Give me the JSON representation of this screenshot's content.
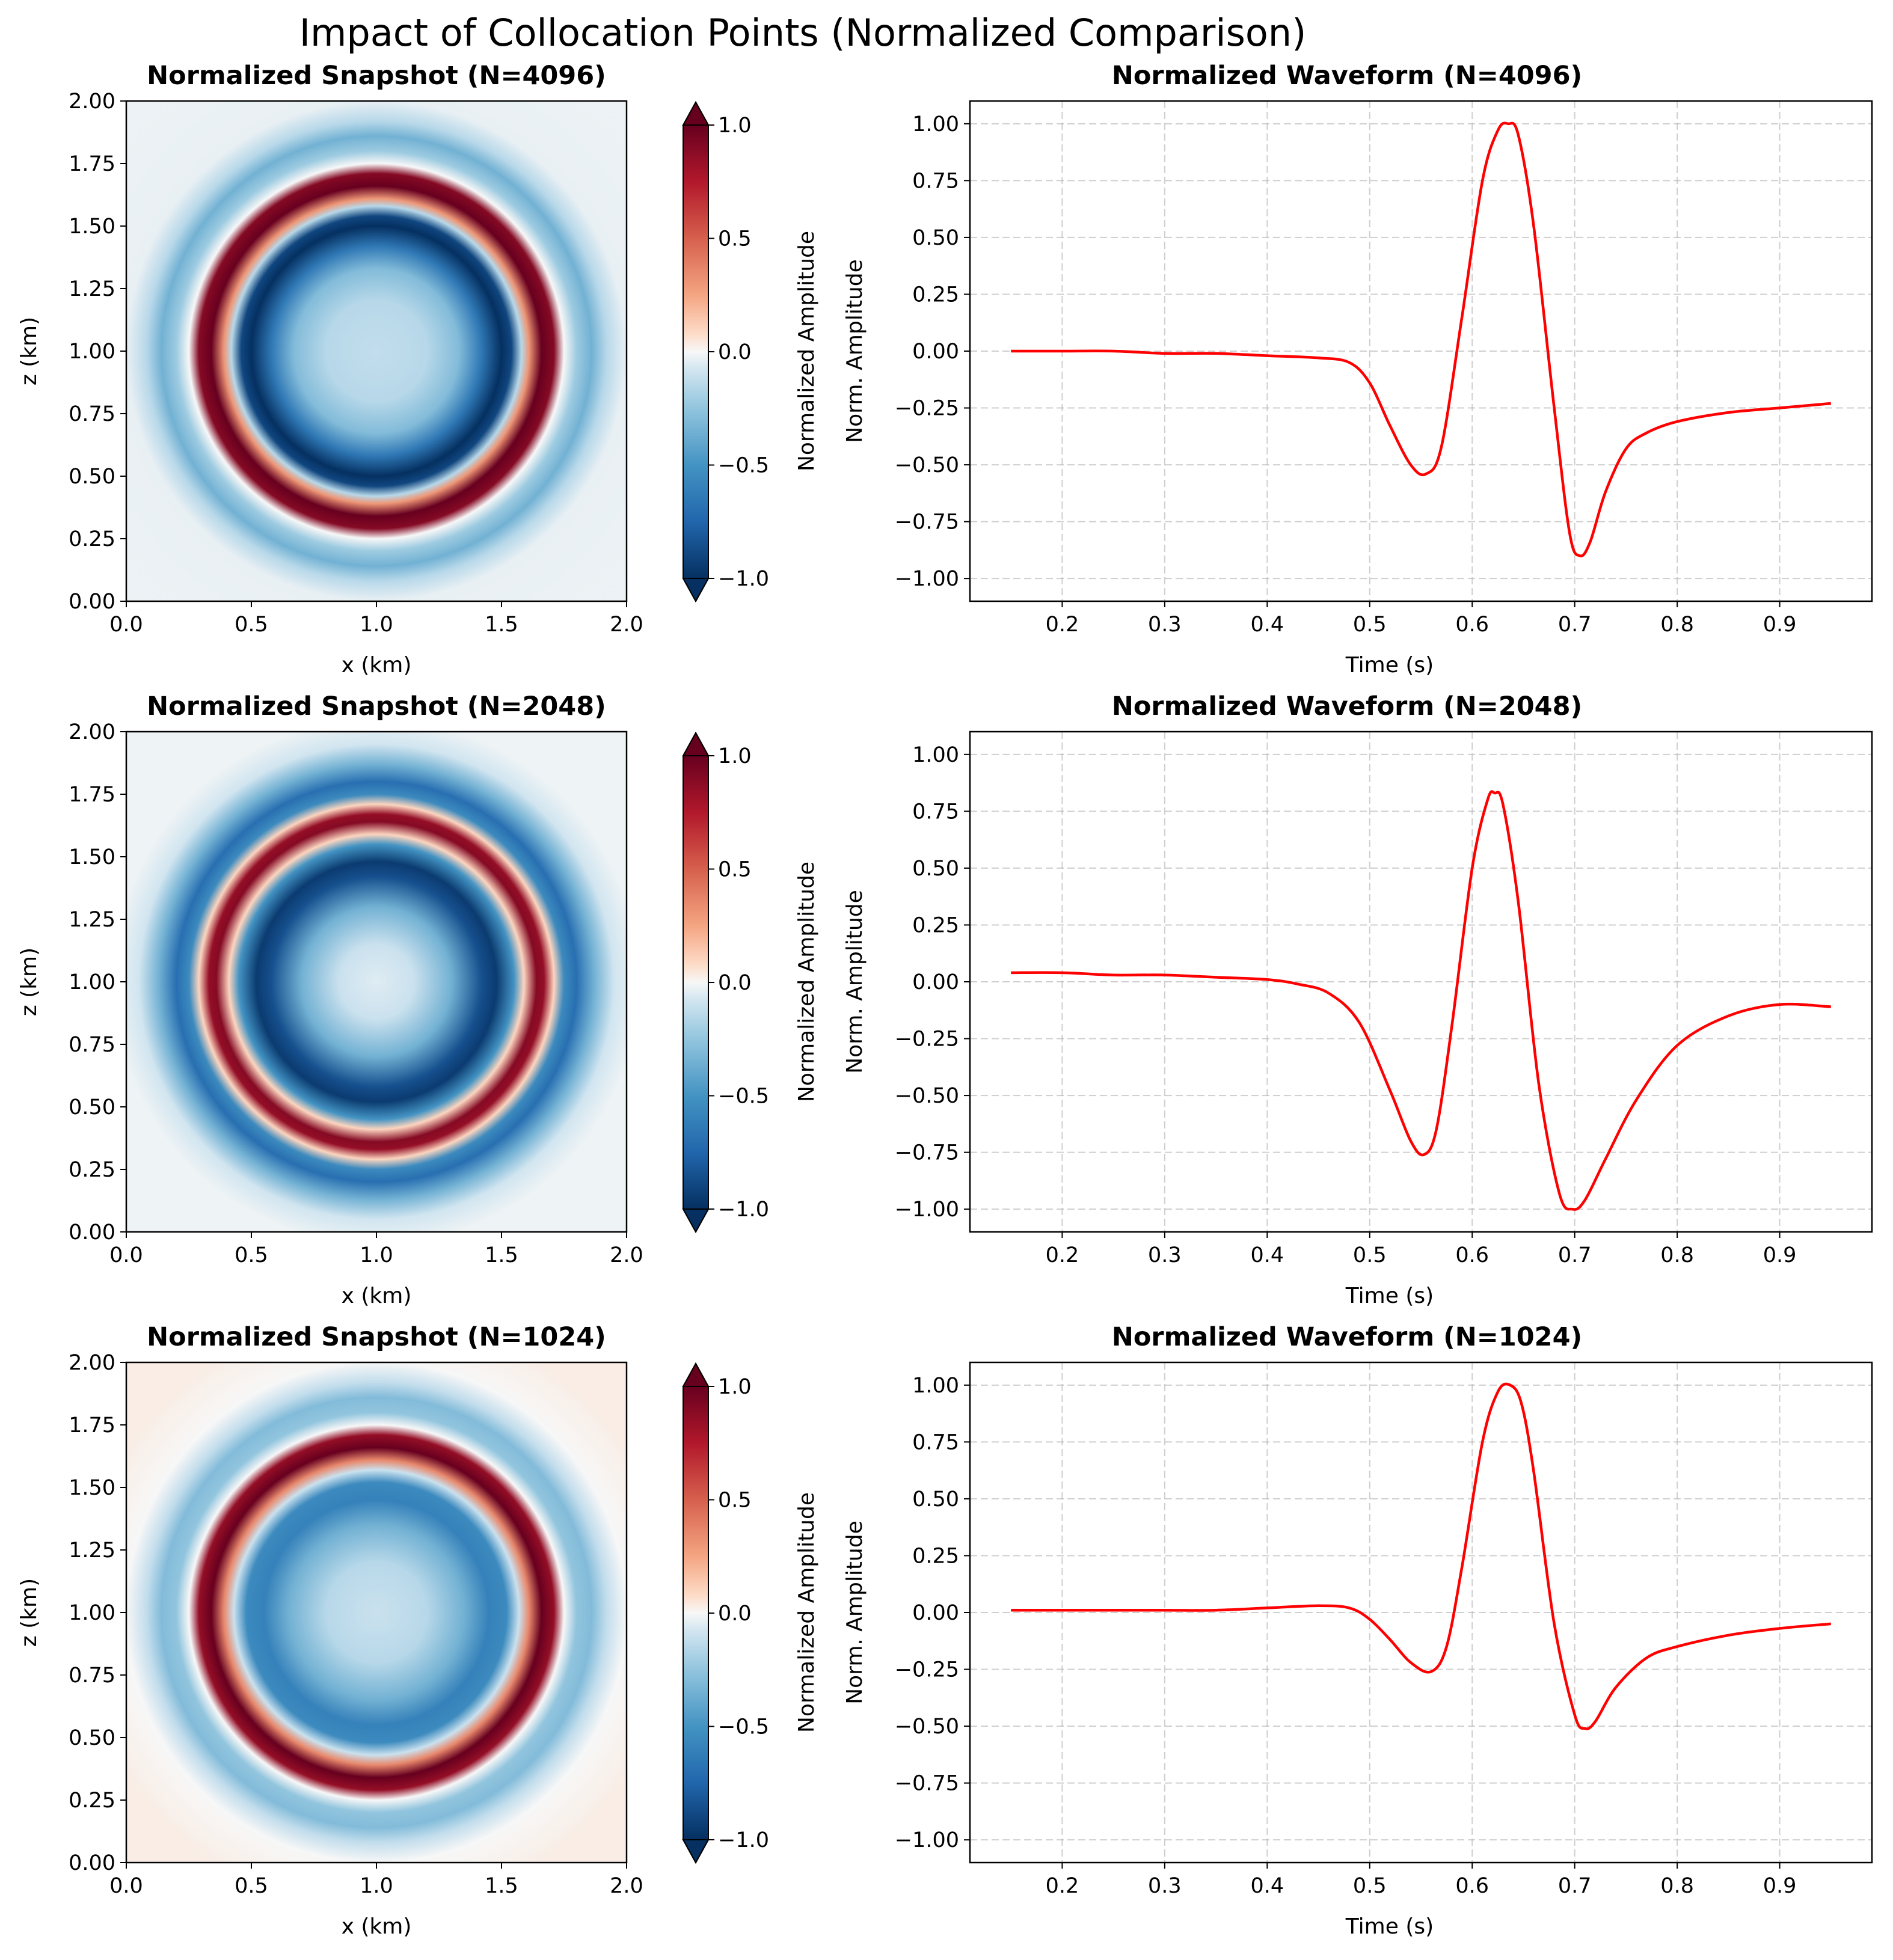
{
  "suptitle": "Impact of Collocation Points (Normalized Comparison)",
  "colors": {
    "line": "#ff0000",
    "grid": "#b0b0b0",
    "cmap_neg": "#053061",
    "cmap_mid": "#f7f7f7",
    "cmap_pos": "#67001f"
  },
  "chart_data": [
    {
      "type": "heatmap",
      "title": "Normalized Snapshot (N=4096)",
      "xlabel": "x (km)",
      "ylabel": "z (km)",
      "xlim": [
        0,
        2
      ],
      "ylim": [
        0,
        2
      ],
      "xticks": [
        "0.0",
        "0.5",
        "1.0",
        "1.5",
        "2.0"
      ],
      "yticks": [
        "0.00",
        "0.25",
        "0.50",
        "0.75",
        "1.00",
        "1.25",
        "1.50",
        "1.75",
        "2.00"
      ],
      "colorbar": {
        "label": "Normalized Amplitude",
        "range": [
          -1,
          1
        ],
        "ticks": [
          "−1.0",
          "−0.5",
          "0.0",
          "0.5",
          "1.0"
        ],
        "extend": "both"
      },
      "field": {
        "center": [
          1.0,
          1.0
        ],
        "radial_profile_km": [
          [
            0,
            -0.12
          ],
          [
            0.2,
            -0.15
          ],
          [
            0.33,
            -0.3
          ],
          [
            0.42,
            -0.65
          ],
          [
            0.5,
            -1.0
          ],
          [
            0.54,
            -0.9
          ],
          [
            0.58,
            -0.15
          ],
          [
            0.61,
            0.3
          ],
          [
            0.66,
            1.0
          ],
          [
            0.71,
            0.9
          ],
          [
            0.75,
            0.0
          ],
          [
            0.8,
            -0.22
          ],
          [
            0.86,
            -0.35
          ],
          [
            0.92,
            -0.15
          ],
          [
            1.0,
            -0.03
          ],
          [
            1.5,
            -0.02
          ]
        ]
      }
    },
    {
      "type": "line",
      "title": "Normalized Waveform (N=4096)",
      "xlabel": "Time (s)",
      "ylabel": "Norm. Amplitude",
      "xlim": [
        0.11,
        0.99
      ],
      "ylim": [
        -1.1,
        1.1
      ],
      "xticks": [
        "0.2",
        "0.3",
        "0.4",
        "0.5",
        "0.6",
        "0.7",
        "0.8",
        "0.9"
      ],
      "yticks": [
        "−1.00",
        "−0.75",
        "−0.50",
        "−0.25",
        "0.00",
        "0.25",
        "0.50",
        "0.75",
        "1.00"
      ],
      "x": [
        0.15,
        0.2,
        0.25,
        0.3,
        0.35,
        0.4,
        0.45,
        0.48,
        0.5,
        0.52,
        0.54,
        0.555,
        0.57,
        0.59,
        0.61,
        0.625,
        0.635,
        0.645,
        0.66,
        0.68,
        0.695,
        0.705,
        0.715,
        0.73,
        0.75,
        0.77,
        0.8,
        0.85,
        0.9,
        0.95
      ],
      "y": [
        0.0,
        0.0,
        0.0,
        -0.01,
        -0.01,
        -0.02,
        -0.03,
        -0.05,
        -0.14,
        -0.33,
        -0.5,
        -0.54,
        -0.42,
        0.15,
        0.75,
        0.97,
        1.0,
        0.95,
        0.55,
        -0.25,
        -0.8,
        -0.9,
        -0.84,
        -0.62,
        -0.43,
        -0.36,
        -0.31,
        -0.27,
        -0.25,
        -0.23
      ]
    },
    {
      "type": "heatmap",
      "title": "Normalized Snapshot (N=2048)",
      "xlabel": "x (km)",
      "ylabel": "z (km)",
      "xlim": [
        0,
        2
      ],
      "ylim": [
        0,
        2
      ],
      "xticks": [
        "0.0",
        "0.5",
        "1.0",
        "1.5",
        "2.0"
      ],
      "yticks": [
        "0.00",
        "0.25",
        "0.50",
        "0.75",
        "1.00",
        "1.25",
        "1.50",
        "1.75",
        "2.00"
      ],
      "colorbar": {
        "label": "Normalized Amplitude",
        "range": [
          -1,
          1
        ],
        "ticks": [
          "−1.0",
          "−0.5",
          "0.0",
          "0.5",
          "1.0"
        ],
        "extend": "both"
      },
      "field": {
        "center": [
          1.0,
          1.0
        ],
        "radial_profile_km": [
          [
            0,
            -0.05
          ],
          [
            0.15,
            -0.1
          ],
          [
            0.3,
            -0.35
          ],
          [
            0.42,
            -0.85
          ],
          [
            0.48,
            -0.95
          ],
          [
            0.55,
            -0.5
          ],
          [
            0.59,
            0.1
          ],
          [
            0.64,
            0.9
          ],
          [
            0.67,
            0.85
          ],
          [
            0.71,
            0.1
          ],
          [
            0.75,
            -0.55
          ],
          [
            0.8,
            -0.7
          ],
          [
            0.87,
            -0.35
          ],
          [
            0.95,
            -0.08
          ],
          [
            1.05,
            -0.02
          ],
          [
            1.5,
            -0.02
          ]
        ]
      }
    },
    {
      "type": "line",
      "title": "Normalized Waveform (N=2048)",
      "xlabel": "Time (s)",
      "ylabel": "Norm. Amplitude",
      "xlim": [
        0.11,
        0.99
      ],
      "ylim": [
        -1.1,
        1.1
      ],
      "xticks": [
        "0.2",
        "0.3",
        "0.4",
        "0.5",
        "0.6",
        "0.7",
        "0.8",
        "0.9"
      ],
      "yticks": [
        "−1.00",
        "−0.75",
        "−0.50",
        "−0.25",
        "0.00",
        "0.25",
        "0.50",
        "0.75",
        "1.00"
      ],
      "x": [
        0.15,
        0.2,
        0.25,
        0.3,
        0.35,
        0.4,
        0.43,
        0.46,
        0.49,
        0.52,
        0.54,
        0.553,
        0.565,
        0.58,
        0.6,
        0.615,
        0.622,
        0.63,
        0.645,
        0.665,
        0.685,
        0.698,
        0.71,
        0.73,
        0.76,
        0.8,
        0.85,
        0.9,
        0.95
      ],
      "y": [
        0.04,
        0.04,
        0.03,
        0.03,
        0.02,
        0.01,
        -0.01,
        -0.05,
        -0.18,
        -0.48,
        -0.7,
        -0.76,
        -0.65,
        -0.2,
        0.5,
        0.8,
        0.83,
        0.78,
        0.35,
        -0.45,
        -0.93,
        -1.0,
        -0.96,
        -0.78,
        -0.52,
        -0.28,
        -0.15,
        -0.1,
        -0.11
      ]
    },
    {
      "type": "heatmap",
      "title": "Normalized Snapshot (N=1024)",
      "xlabel": "x (km)",
      "ylabel": "z (km)",
      "xlim": [
        0,
        2
      ],
      "ylim": [
        0,
        2
      ],
      "xticks": [
        "0.0",
        "0.5",
        "1.0",
        "1.5",
        "2.0"
      ],
      "yticks": [
        "0.00",
        "0.25",
        "0.50",
        "0.75",
        "1.00",
        "1.25",
        "1.50",
        "1.75",
        "2.00"
      ],
      "colorbar": {
        "label": "Normalized Amplitude",
        "range": [
          -1,
          1
        ],
        "ticks": [
          "−1.0",
          "−0.5",
          "0.0",
          "0.5",
          "1.0"
        ],
        "extend": "both"
      },
      "field": {
        "center": [
          1.0,
          1.0
        ],
        "radial_profile_km": [
          [
            0,
            -0.1
          ],
          [
            0.2,
            -0.15
          ],
          [
            0.35,
            -0.35
          ],
          [
            0.45,
            -0.6
          ],
          [
            0.52,
            -0.55
          ],
          [
            0.57,
            -0.1
          ],
          [
            0.61,
            0.35
          ],
          [
            0.66,
            1.0
          ],
          [
            0.71,
            0.85
          ],
          [
            0.75,
            0.0
          ],
          [
            0.8,
            -0.25
          ],
          [
            0.86,
            -0.3
          ],
          [
            0.92,
            -0.12
          ],
          [
            1.0,
            0.0
          ],
          [
            1.2,
            0.03
          ],
          [
            1.5,
            0.03
          ]
        ]
      }
    },
    {
      "type": "line",
      "title": "Normalized Waveform (N=1024)",
      "xlabel": "Time (s)",
      "ylabel": "Norm. Amplitude",
      "xlim": [
        0.11,
        0.99
      ],
      "ylim": [
        -1.1,
        1.1
      ],
      "xticks": [
        "0.2",
        "0.3",
        "0.4",
        "0.5",
        "0.6",
        "0.7",
        "0.8",
        "0.9"
      ],
      "yticks": [
        "−1.00",
        "−0.75",
        "−0.50",
        "−0.25",
        "0.00",
        "0.25",
        "0.50",
        "0.75",
        "1.00"
      ],
      "x": [
        0.15,
        0.2,
        0.25,
        0.3,
        0.35,
        0.4,
        0.45,
        0.48,
        0.5,
        0.52,
        0.54,
        0.56,
        0.575,
        0.59,
        0.61,
        0.625,
        0.637,
        0.648,
        0.66,
        0.68,
        0.7,
        0.71,
        0.72,
        0.74,
        0.77,
        0.8,
        0.85,
        0.9,
        0.95
      ],
      "y": [
        0.01,
        0.01,
        0.01,
        0.01,
        0.01,
        0.02,
        0.03,
        0.02,
        -0.03,
        -0.12,
        -0.22,
        -0.26,
        -0.15,
        0.2,
        0.75,
        0.97,
        1.0,
        0.92,
        0.62,
        -0.05,
        -0.45,
        -0.51,
        -0.48,
        -0.33,
        -0.2,
        -0.15,
        -0.1,
        -0.07,
        -0.05
      ]
    }
  ]
}
